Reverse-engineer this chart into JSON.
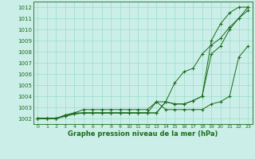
{
  "x": [
    0,
    1,
    2,
    3,
    4,
    5,
    6,
    7,
    8,
    9,
    10,
    11,
    12,
    13,
    14,
    15,
    16,
    17,
    18,
    19,
    20,
    21,
    22,
    23
  ],
  "line1": [
    1002,
    1002,
    1002,
    1002.3,
    1002.5,
    1002.5,
    1002.5,
    1002.5,
    1002.5,
    1002.5,
    1002.5,
    1002.5,
    1002.5,
    1003.5,
    1002.8,
    1002.8,
    1002.8,
    1002.8,
    1002.8,
    1003.3,
    1003.5,
    1004,
    1007.5,
    1008.5
  ],
  "line2": [
    1002,
    1002,
    1002,
    1002.3,
    1002.5,
    1002.8,
    1002.8,
    1002.8,
    1002.8,
    1002.8,
    1002.8,
    1002.8,
    1002.8,
    1003.5,
    1003.5,
    1005.2,
    1006.2,
    1006.5,
    1007.8,
    1008.6,
    1009.2,
    1010.2,
    1011.0,
    1011.7
  ],
  "line3": [
    1002,
    1002,
    1002,
    1002.2,
    1002.4,
    1002.5,
    1002.5,
    1002.5,
    1002.5,
    1002.5,
    1002.5,
    1002.5,
    1002.5,
    1002.5,
    1003.5,
    1003.3,
    1003.3,
    1003.6,
    1004.0,
    1007.8,
    1008.5,
    1010.0,
    1011.0,
    1012.0
  ],
  "line4": [
    1002,
    1002,
    1002,
    1002.2,
    1002.4,
    1002.5,
    1002.5,
    1002.5,
    1002.5,
    1002.5,
    1002.5,
    1002.5,
    1002.5,
    1002.5,
    1003.5,
    1003.3,
    1003.3,
    1003.6,
    1004.0,
    1009.0,
    1010.5,
    1011.5,
    1012.0,
    1012.0
  ],
  "ylim": [
    1001.5,
    1012.5
  ],
  "xlim": [
    -0.5,
    23.5
  ],
  "yticks": [
    1002,
    1003,
    1004,
    1005,
    1006,
    1007,
    1008,
    1009,
    1010,
    1011,
    1012
  ],
  "xticks": [
    0,
    1,
    2,
    3,
    4,
    5,
    6,
    7,
    8,
    9,
    10,
    11,
    12,
    13,
    14,
    15,
    16,
    17,
    18,
    19,
    20,
    21,
    22,
    23
  ],
  "bg_color": "#cceee8",
  "line_color": "#1a6b1a",
  "grid_color": "#99ddcc",
  "xlabel": "Graphe pression niveau de la mer (hPa)",
  "xlabel_fontsize": 6.0,
  "ytick_fontsize": 5.0,
  "xtick_fontsize": 4.5
}
